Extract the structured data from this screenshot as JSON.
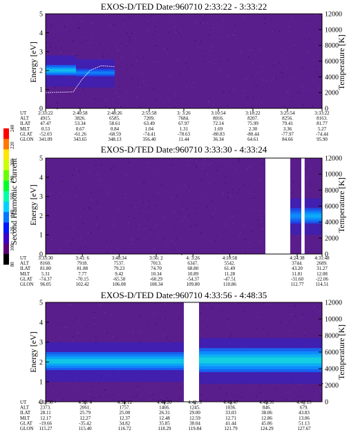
{
  "colorbar": {
    "label": "Second Harmonic Current",
    "ticks": [
      80,
      100,
      120,
      140,
      160,
      180,
      200,
      220,
      240
    ],
    "colors": [
      "#000000",
      "#5a0078",
      "#3c00c8",
      "#0018ff",
      "#0078ff",
      "#00d2ff",
      "#00ffaa",
      "#00ff2a",
      "#66ff00",
      "#ccff00",
      "#ffe600",
      "#ff7800",
      "#ff0000"
    ]
  },
  "chart_data": [
    {
      "type": "heatmap",
      "title": "EXOS-D/TED   Date:960710  2:33:22 - 3:33:22",
      "ylabel": "Energy [eV]",
      "y2label": "Temperature [K]",
      "ylim": [
        0,
        5
      ],
      "yticks": [
        0,
        1,
        2,
        3,
        4,
        5
      ],
      "y2lim": [
        0,
        12000
      ],
      "y2ticks": [
        0,
        2000,
        4000,
        6000,
        8000,
        10000,
        12000
      ],
      "gaps": [],
      "bands": [
        {
          "x0": 0.0,
          "x1": 0.11,
          "ylo": 1.75,
          "yhi": 2.3,
          "peak": 0.75
        },
        {
          "x0": 0.11,
          "x1": 0.25,
          "ylo": 1.7,
          "yhi": 2.1,
          "peak": 0.45
        }
      ],
      "temperature_trace": [
        [
          0.0,
          2000
        ],
        [
          0.05,
          2050
        ],
        [
          0.1,
          2100
        ],
        [
          0.13,
          3600
        ],
        [
          0.16,
          4800
        ],
        [
          0.2,
          5400
        ],
        [
          0.25,
          5300
        ]
      ],
      "ephemeris": {
        "labels": [
          "UT",
          "ALT",
          "ILAT",
          "MLT",
          "GLAT",
          "GLON"
        ],
        "columns": [
          [
            "2:33:22",
            "4915.",
            "47.47",
            "0.53",
            "-52.03",
            "341.09"
          ],
          [
            "2:40:58",
            "3826.",
            "53.34",
            "0.67",
            "-61.26",
            "343.65"
          ],
          [
            "2:48:26",
            "6585.",
            "58.61",
            "0.84",
            "-68.59",
            "348.13"
          ],
          [
            "2:55:58",
            "7209.",
            "63.49",
            "1.04",
            "-74.41",
            "356.40"
          ],
          [
            "3: 3:26",
            "7684.",
            "67.97",
            "1.31",
            "-78.63",
            "11.44"
          ],
          [
            "3:10:54",
            "8016.",
            "72.14",
            "1.69",
            "-80.83",
            "36.34"
          ],
          [
            "3:18:22",
            "8207.",
            "75.99",
            "2.30",
            "-80.44",
            "64.61"
          ],
          [
            "3:25:54",
            "8256.",
            "79.41",
            "3.36",
            "-77.97",
            "84.66"
          ],
          [
            "3:33:22",
            "8163.",
            "81.77",
            "5.27",
            "-74.44",
            "95.90"
          ]
        ]
      }
    },
    {
      "type": "heatmap",
      "title": "EXOS-D/TED   Date:960710  3:33:30 - 4:33:24",
      "ylabel": "Energy [eV]",
      "y2label": "Temperature [K]",
      "ylim": [
        0,
        5
      ],
      "yticks": [
        0,
        1,
        2,
        3,
        4,
        5
      ],
      "y2lim": [
        0,
        12000
      ],
      "y2ticks": [
        0,
        2000,
        4000,
        6000,
        8000,
        10000,
        12000
      ],
      "gaps": [
        [
          0.795,
          0.885
        ],
        [
          0.925,
          0.937
        ]
      ],
      "bands": [
        {
          "x0": 0.885,
          "x1": 0.925,
          "ylo": 1.6,
          "yhi": 2.4,
          "peak": 0.5
        },
        {
          "x0": 0.937,
          "x1": 1.0,
          "ylo": 1.6,
          "yhi": 2.4,
          "peak": 0.65
        }
      ],
      "temperature_trace": [],
      "ephemeris": {
        "labels": [
          "UT",
          "ALT",
          "ILAT",
          "MLT",
          "GLAT",
          "GLON"
        ],
        "columns": [
          [
            "3:33:30",
            "8160.",
            "81.80",
            "5.31",
            "-74.37",
            "96.05"
          ],
          [
            "3:41: 6",
            "7918.",
            "81.88",
            "7.77",
            "-70.15",
            "102.42"
          ],
          [
            "3:48:34",
            "7537.",
            "79.23",
            "9.42",
            "-65.50",
            "106.08"
          ],
          [
            "3:56: 2",
            "7013.",
            "74.70",
            "10.34",
            "-60.29",
            "108.34"
          ],
          [
            "4: 3:26",
            "6347.",
            "68.80",
            "10.89",
            "-54.37",
            "109.80"
          ],
          [
            "4:10:58",
            "5542.",
            "61.49",
            "11.28",
            "-47.51",
            "110.86"
          ],
          [
            "4:24:38",
            "3744.",
            "43.20",
            "11.81",
            "-31.60",
            "112.77"
          ],
          [
            "4:31:48",
            "2689.",
            "31.27",
            "12.08",
            "-22.06",
            "114.51"
          ]
        ]
      }
    },
    {
      "type": "heatmap",
      "title": "EXOS-D/TED   Date:960710  4:33:56 - 4:48:35",
      "ylabel": "Energy [eV]",
      "y2label": "Temperature [K]",
      "ylim": [
        0,
        5
      ],
      "yticks": [
        0,
        1,
        2,
        3,
        4,
        5
      ],
      "y2lim": [
        0,
        12000
      ],
      "y2ticks": [
        0,
        2000,
        4000,
        6000,
        8000,
        10000,
        12000
      ],
      "gaps": [
        [
          0.5,
          0.555
        ]
      ],
      "bands": [
        {
          "x0": 0.0,
          "x1": 0.5,
          "ylo": 1.6,
          "yhi": 2.5,
          "peak": 0.8
        },
        {
          "x0": 0.555,
          "x1": 1.0,
          "ylo": 1.5,
          "yhi": 2.7,
          "peak": 0.85
        }
      ],
      "temperature_trace": [],
      "ephemeris": {
        "labels": [
          "UT",
          "ALT",
          "ILAT",
          "MLT",
          "GLAT",
          "GLON"
        ],
        "columns": [
          [
            "4:33:56",
            "2373.",
            "28.11",
            "12.17",
            "-19.66",
            "115.27"
          ],
          [
            "4:36: 4",
            "2061.",
            "25.79",
            "12.27",
            "-35.42",
            "115.40"
          ],
          [
            "4:38:12",
            "1757.",
            "25.00",
            "12.37",
            "34.82",
            "116.72"
          ],
          [
            "4:40:20",
            "1466.",
            "26.31",
            "12.48",
            "35.85",
            "118.29"
          ],
          [
            "4:42: 3",
            "1245.",
            "29.00",
            "12.59",
            "38.04",
            "119.84"
          ],
          [
            "4:43:47",
            "1036.",
            "33.03",
            "12.71",
            "41.44",
            "121.79"
          ],
          [
            "4:45:31",
            "846.",
            "38.06",
            "12.86",
            "45.86",
            "124.29"
          ],
          [
            "4:47:15",
            "679.",
            "43.83",
            "13.06",
            "51.13",
            "127.67"
          ]
        ]
      }
    }
  ]
}
